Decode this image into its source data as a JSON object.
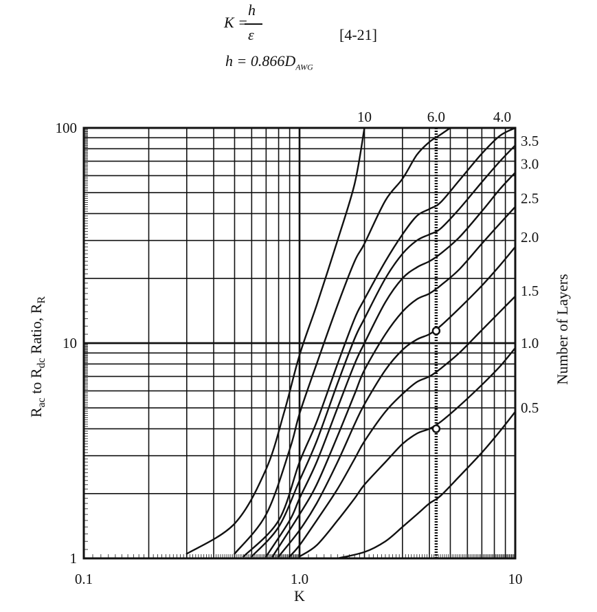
{
  "equations": {
    "k_lhs": "K =",
    "frac_num": "h",
    "frac_den": "ε",
    "eq_number": "[4-21]",
    "h_def_lhs": "h = 0.866D",
    "h_def_sub": "AWG"
  },
  "chart_data": {
    "type": "line",
    "title": "",
    "xlabel": "K",
    "ylabel": "R",
    "ylabel_parts": {
      "base": "R",
      "s1": "ac",
      "mid": " to R",
      "s2": "dc",
      "mid2": " Ratio, R",
      "s3": "R"
    },
    "y2label": "Number of Layers",
    "x_scale": "log",
    "y_scale": "log",
    "xlim": [
      0.1,
      10
    ],
    "ylim": [
      1,
      100
    ],
    "x_ticks": [
      {
        "value": 0.1,
        "label": "0.1"
      },
      {
        "value": 1.0,
        "label": "1.0"
      },
      {
        "value": 10,
        "label": "10"
      }
    ],
    "y_ticks": [
      {
        "value": 1,
        "label": "1"
      },
      {
        "value": 10,
        "label": "10"
      },
      {
        "value": 100,
        "label": "100"
      }
    ],
    "grid": true,
    "series": [
      {
        "name": "10",
        "points": [
          [
            0.3,
            1.05
          ],
          [
            0.5,
            1.45
          ],
          [
            0.7,
            2.6
          ],
          [
            0.85,
            4.8
          ],
          [
            1.0,
            8.8
          ],
          [
            1.2,
            15
          ],
          [
            1.5,
            30
          ],
          [
            1.8,
            55
          ],
          [
            2.0,
            100
          ]
        ]
      },
      {
        "name": "6.0",
        "points": [
          [
            0.5,
            1.05
          ],
          [
            0.7,
            1.6
          ],
          [
            0.9,
            3.2
          ],
          [
            1.0,
            4.7
          ],
          [
            1.2,
            8
          ],
          [
            1.5,
            15
          ],
          [
            1.8,
            24
          ],
          [
            2.0,
            29
          ],
          [
            2.5,
            46
          ],
          [
            3.0,
            58
          ],
          [
            3.5,
            75
          ],
          [
            4.0,
            86
          ],
          [
            4.5,
            93
          ],
          [
            5.0,
            100
          ]
        ]
      },
      {
        "name": "4.0",
        "points": [
          [
            0.55,
            1.02
          ],
          [
            0.8,
            1.5
          ],
          [
            1.0,
            2.8
          ],
          [
            1.2,
            4.3
          ],
          [
            1.5,
            8
          ],
          [
            1.8,
            13
          ],
          [
            2.0,
            16
          ],
          [
            2.5,
            24
          ],
          [
            3.0,
            32
          ],
          [
            3.5,
            39
          ],
          [
            4.0,
            42
          ],
          [
            4.5,
            45
          ],
          [
            5.5,
            57
          ],
          [
            7.0,
            76
          ],
          [
            8.5,
            92
          ],
          [
            10,
            100
          ]
        ]
      },
      {
        "name": "3.5",
        "points": [
          [
            0.6,
            1.02
          ],
          [
            0.8,
            1.4
          ],
          [
            1.0,
            2.3
          ],
          [
            1.2,
            3.5
          ],
          [
            1.5,
            6.5
          ],
          [
            1.8,
            10.5
          ],
          [
            2.0,
            13
          ],
          [
            2.5,
            20
          ],
          [
            3.0,
            26
          ],
          [
            3.5,
            30
          ],
          [
            4.0,
            32
          ],
          [
            4.5,
            34
          ],
          [
            5.5,
            42
          ],
          [
            7.0,
            56
          ],
          [
            8.5,
            70
          ],
          [
            10,
            83
          ]
        ]
      },
      {
        "name": "3.0",
        "points": [
          [
            0.7,
            1.02
          ],
          [
            0.9,
            1.5
          ],
          [
            1.0,
            1.9
          ],
          [
            1.2,
            2.8
          ],
          [
            1.5,
            5.0
          ],
          [
            1.8,
            8.0
          ],
          [
            2.0,
            10
          ],
          [
            2.5,
            15.5
          ],
          [
            3.0,
            20
          ],
          [
            3.5,
            22.5
          ],
          [
            4.0,
            24
          ],
          [
            4.5,
            26
          ],
          [
            5.5,
            31
          ],
          [
            7.0,
            41
          ],
          [
            8.5,
            52
          ],
          [
            10,
            62
          ]
        ]
      },
      {
        "name": "2.5",
        "points": [
          [
            0.75,
            1.02
          ],
          [
            1.0,
            1.6
          ],
          [
            1.2,
            2.2
          ],
          [
            1.5,
            3.7
          ],
          [
            1.8,
            5.8
          ],
          [
            2.0,
            7.5
          ],
          [
            2.5,
            11
          ],
          [
            3.0,
            14
          ],
          [
            3.5,
            16
          ],
          [
            4.0,
            17
          ],
          [
            4.5,
            18.5
          ],
          [
            5.5,
            22
          ],
          [
            7.0,
            29
          ],
          [
            8.5,
            36
          ],
          [
            10,
            43
          ]
        ]
      },
      {
        "name": "2.0",
        "points": [
          [
            0.8,
            1.02
          ],
          [
            1.0,
            1.35
          ],
          [
            1.2,
            1.8
          ],
          [
            1.5,
            2.8
          ],
          [
            1.8,
            4.2
          ],
          [
            2.0,
            5.2
          ],
          [
            2.5,
            7.5
          ],
          [
            3.0,
            9.3
          ],
          [
            3.5,
            10.4
          ],
          [
            4.0,
            11
          ],
          [
            4.5,
            12
          ],
          [
            5.5,
            14.5
          ],
          [
            7.0,
            18.5
          ],
          [
            8.5,
            23
          ],
          [
            10,
            28
          ]
        ]
      },
      {
        "name": "1.5",
        "points": [
          [
            0.9,
            1.02
          ],
          [
            1.0,
            1.15
          ],
          [
            1.2,
            1.5
          ],
          [
            1.5,
            2.1
          ],
          [
            1.8,
            2.9
          ],
          [
            2.0,
            3.5
          ],
          [
            2.5,
            4.8
          ],
          [
            3.0,
            5.8
          ],
          [
            3.5,
            6.6
          ],
          [
            4.0,
            7.0
          ],
          [
            4.5,
            7.6
          ],
          [
            5.5,
            9.0
          ],
          [
            7.0,
            11.5
          ],
          [
            8.5,
            14
          ],
          [
            10,
            16.5
          ]
        ]
      },
      {
        "name": "1.0",
        "points": [
          [
            1.0,
            1.02
          ],
          [
            1.2,
            1.15
          ],
          [
            1.5,
            1.5
          ],
          [
            1.8,
            1.9
          ],
          [
            2.0,
            2.2
          ],
          [
            2.5,
            2.8
          ],
          [
            3.0,
            3.4
          ],
          [
            3.5,
            3.8
          ],
          [
            4.0,
            4.0
          ],
          [
            4.5,
            4.3
          ],
          [
            5.5,
            5.1
          ],
          [
            7.0,
            6.4
          ],
          [
            8.5,
            7.8
          ],
          [
            10,
            9.5
          ]
        ]
      },
      {
        "name": "0.5",
        "points": [
          [
            1.5,
            1.0
          ],
          [
            2.0,
            1.07
          ],
          [
            2.5,
            1.2
          ],
          [
            3.0,
            1.4
          ],
          [
            3.5,
            1.6
          ],
          [
            4.0,
            1.8
          ],
          [
            4.5,
            1.95
          ],
          [
            5.5,
            2.4
          ],
          [
            7.0,
            3.1
          ],
          [
            8.5,
            3.9
          ],
          [
            10,
            4.8
          ]
        ]
      }
    ],
    "right_labels": [
      {
        "text": "10",
        "y": 120
      },
      {
        "text": "6.0",
        "y": 120
      },
      {
        "text": "4.0",
        "y": 120
      },
      {
        "text": "3.5",
        "y": 87
      },
      {
        "text": "3.0",
        "y": 68
      },
      {
        "text": "2.5",
        "y": 47
      },
      {
        "text": "2.0",
        "y": 31
      },
      {
        "text": "1.5",
        "y": 17.5
      },
      {
        "text": "1.0",
        "y": 10
      },
      {
        "text": "0.5",
        "y": 5
      }
    ],
    "marker_line_x": 4.3,
    "markers": [
      {
        "x": 4.3,
        "y": 11.4
      },
      {
        "x": 4.3,
        "y": 4.0
      }
    ],
    "legend": "none"
  }
}
